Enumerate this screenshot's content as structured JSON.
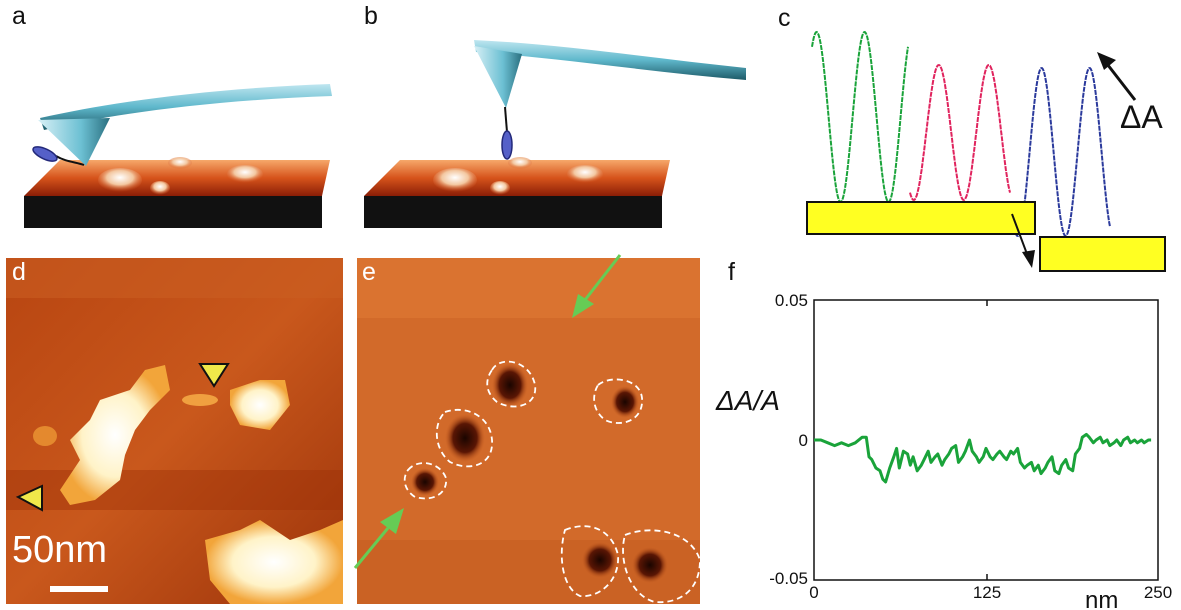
{
  "panels": {
    "a": "a",
    "b": "b",
    "c": "c",
    "d": "d",
    "e": "e",
    "f": "f"
  },
  "panel_c": {
    "delta_label": "ΔA",
    "trace_colors": [
      "#1aa33a",
      "#e0245e",
      "#2b3a9c"
    ]
  },
  "panel_d": {
    "scale_label": "50nm"
  },
  "chart_data": {
    "type": "line",
    "title": "",
    "xlabel": "nm",
    "ylabel": "ΔA/A",
    "xlim": [
      0,
      250
    ],
    "ylim": [
      -0.05,
      0.05
    ],
    "xticks": [
      "0",
      "125",
      "250"
    ],
    "yticks": [
      "0.05",
      "0",
      "-0.05"
    ],
    "series": [
      {
        "color": "#1aa33a",
        "x": [
          0,
          5,
          10,
          15,
          20,
          25,
          30,
          35,
          38,
          40,
          42,
          45,
          48,
          50,
          52,
          55,
          58,
          60,
          62,
          65,
          68,
          70,
          72,
          75,
          78,
          80,
          83,
          85,
          88,
          90,
          93,
          95,
          98,
          100,
          103,
          105,
          108,
          110,
          113,
          115,
          118,
          120,
          123,
          125,
          128,
          130,
          133,
          135,
          138,
          140,
          143,
          145,
          148,
          150,
          153,
          155,
          158,
          160,
          163,
          165,
          168,
          170,
          173,
          175,
          178,
          180,
          183,
          185,
          188,
          190,
          193,
          195,
          198,
          200,
          203,
          205,
          208,
          210,
          213,
          215,
          218,
          220,
          223,
          225,
          228,
          230,
          233,
          235,
          238,
          240,
          243,
          245
        ],
        "y": [
          0.0,
          0.0,
          -0.001,
          -0.002,
          -0.001,
          -0.002,
          -0.001,
          0.001,
          0.001,
          -0.006,
          -0.007,
          -0.01,
          -0.011,
          -0.014,
          -0.015,
          -0.01,
          -0.006,
          -0.003,
          -0.01,
          -0.004,
          -0.005,
          -0.009,
          -0.006,
          -0.011,
          -0.009,
          -0.007,
          -0.004,
          -0.008,
          -0.006,
          -0.005,
          -0.009,
          -0.007,
          -0.005,
          -0.003,
          -0.002,
          -0.008,
          -0.006,
          -0.004,
          0.0,
          -0.004,
          -0.006,
          -0.008,
          -0.006,
          -0.003,
          -0.006,
          -0.007,
          -0.005,
          -0.004,
          -0.006,
          -0.007,
          -0.004,
          -0.005,
          -0.003,
          -0.008,
          -0.01,
          -0.009,
          -0.008,
          -0.011,
          -0.009,
          -0.012,
          -0.01,
          -0.008,
          -0.006,
          -0.011,
          -0.012,
          -0.009,
          -0.007,
          -0.01,
          -0.011,
          -0.005,
          -0.003,
          0.001,
          0.002,
          0.001,
          -0.001,
          0.0,
          0.001,
          -0.001,
          0.0,
          -0.002,
          -0.001,
          0.0,
          -0.002,
          0.0,
          0.001,
          -0.001,
          0.0,
          -0.001,
          0.0,
          -0.001,
          0.0,
          0.0
        ]
      }
    ],
    "grid": false
  }
}
